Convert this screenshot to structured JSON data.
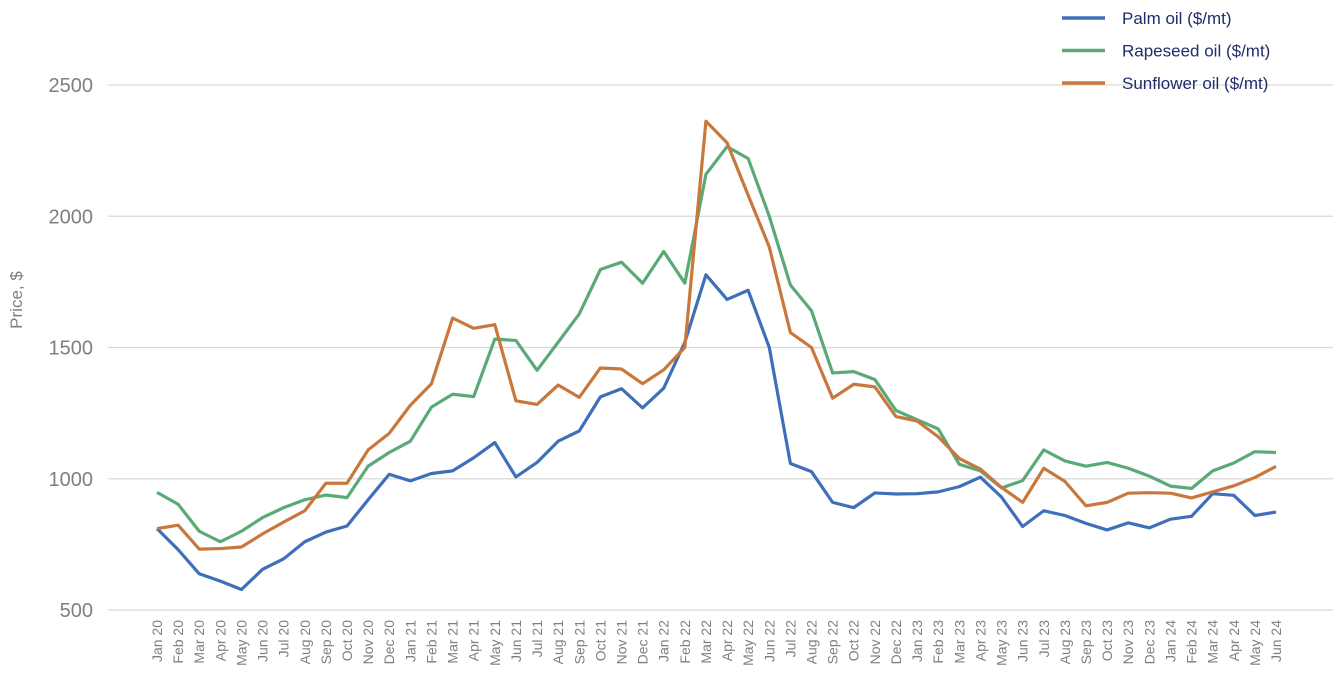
{
  "chart_data": {
    "type": "line",
    "y_label": "Price, $",
    "categories": [
      "Jan 20",
      "Feb 20",
      "Mar 20",
      "Apr 20",
      "May 20",
      "Jun 20",
      "Jul 20",
      "Aug 20",
      "Sep 20",
      "Oct 20",
      "Nov 20",
      "Dec 20",
      "Jan 21",
      "Feb 21",
      "Mar 21",
      "Apr 21",
      "May 21",
      "Jun 21",
      "Jul 21",
      "Aug 21",
      "Sep 21",
      "Oct 21",
      "Nov 21",
      "Dec 21",
      "Jan 22",
      "Feb 22",
      "Mar 22",
      "Apr 22",
      "May 22",
      "Jun 22",
      "Jul 22",
      "Aug 22",
      "Sep 22",
      "Oct 22",
      "Nov 22",
      "Dec 22",
      "Jan 23",
      "Feb 23",
      "Mar 23",
      "Apr 23",
      "May 23",
      "Jun 23",
      "Jul 23",
      "Aug 23",
      "Sep 23",
      "Oct 23",
      "Nov 23",
      "Dec 23",
      "Jan 24",
      "Feb 24",
      "Mar 24",
      "Apr 24",
      "May 24",
      "Jun 24"
    ],
    "series": [
      {
        "name": "Palm oil ($/mt)",
        "color": "#3f6fb8",
        "values": [
          810,
          730,
          638,
          610,
          578,
          655,
          695,
          760,
          797,
          820,
          920,
          1017,
          992,
          1020,
          1030,
          1080,
          1138,
          1007,
          1062,
          1143,
          1182,
          1312,
          1343,
          1270,
          1345,
          1520,
          1777,
          1683,
          1718,
          1500,
          1058,
          1027,
          910,
          890,
          946,
          942,
          943,
          950,
          970,
          1006,
          930,
          818,
          878,
          860,
          830,
          805,
          832,
          813,
          846,
          857,
          943,
          937,
          860,
          873
        ]
      },
      {
        "name": "Rapeseed oil ($/mt)",
        "color": "#5aaa78",
        "values": [
          948,
          903,
          800,
          760,
          800,
          852,
          890,
          920,
          938,
          928,
          1048,
          1100,
          1143,
          1273,
          1322,
          1313,
          1532,
          1527,
          1413,
          1520,
          1628,
          1797,
          1825,
          1745,
          1866,
          1745,
          2160,
          2265,
          2220,
          2000,
          1738,
          1640,
          1403,
          1408,
          1378,
          1260,
          1225,
          1190,
          1055,
          1030,
          965,
          993,
          1110,
          1068,
          1048,
          1062,
          1040,
          1010,
          972,
          963,
          1030,
          1060,
          1103,
          1100
        ]
      },
      {
        "name": "Sunflower oil ($/mt)",
        "color": "#c8783c",
        "values": [
          810,
          823,
          732,
          734,
          740,
          790,
          835,
          878,
          983,
          983,
          1110,
          1173,
          1280,
          1362,
          1612,
          1573,
          1587,
          1297,
          1283,
          1357,
          1310,
          1422,
          1418,
          1362,
          1415,
          1500,
          2362,
          2280,
          2080,
          1883,
          1557,
          1500,
          1307,
          1360,
          1350,
          1237,
          1220,
          1160,
          1077,
          1037,
          967,
          910,
          1040,
          990,
          897,
          910,
          945,
          947,
          945,
          927,
          950,
          973,
          1005,
          1047
        ]
      }
    ],
    "ylim": [
      500,
      2500
    ],
    "yticks": [
      500,
      1000,
      1500,
      2000,
      2500
    ],
    "grid": true,
    "legend": "top-right"
  }
}
